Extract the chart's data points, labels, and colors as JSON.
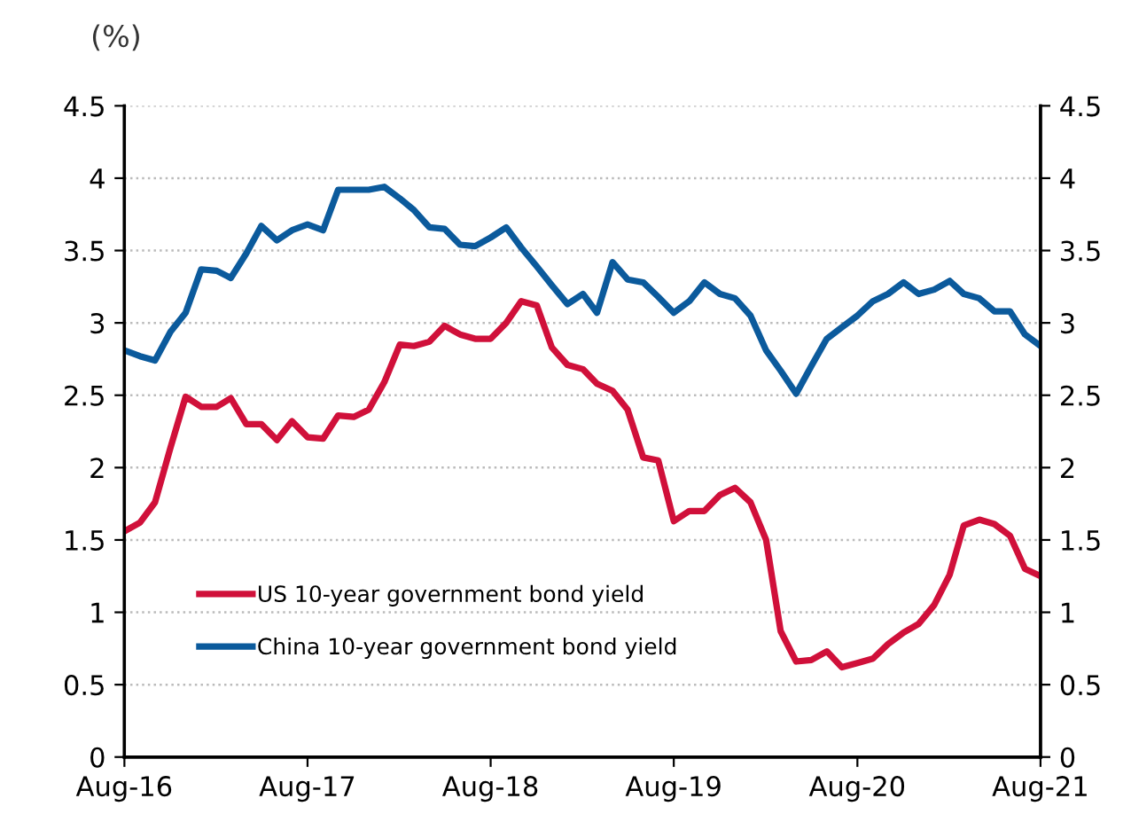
{
  "chart_data": {
    "type": "line",
    "ylabel": "(%)",
    "x": [
      "2016-08",
      "2016-09",
      "2016-10",
      "2016-11",
      "2016-12",
      "2017-01",
      "2017-02",
      "2017-03",
      "2017-04",
      "2017-05",
      "2017-06",
      "2017-07",
      "2017-08",
      "2017-09",
      "2017-10",
      "2017-11",
      "2017-12",
      "2018-01",
      "2018-02",
      "2018-03",
      "2018-04",
      "2018-05",
      "2018-06",
      "2018-07",
      "2018-08",
      "2018-09",
      "2018-10",
      "2018-11",
      "2018-12",
      "2019-01",
      "2019-02",
      "2019-03",
      "2019-04",
      "2019-05",
      "2019-06",
      "2019-07",
      "2019-08",
      "2019-09",
      "2019-10",
      "2019-11",
      "2019-12",
      "2020-01",
      "2020-02",
      "2020-03",
      "2020-04",
      "2020-05",
      "2020-06",
      "2020-07",
      "2020-08",
      "2020-09",
      "2020-10",
      "2020-11",
      "2020-12",
      "2021-01",
      "2021-02",
      "2021-03",
      "2021-04",
      "2021-05",
      "2021-06",
      "2021-07",
      "2021-08"
    ],
    "series": [
      {
        "name": "US 10-year government bond yield",
        "color": "#d0103a",
        "values": [
          1.56,
          1.62,
          1.76,
          2.14,
          2.49,
          2.42,
          2.42,
          2.48,
          2.3,
          2.3,
          2.19,
          2.32,
          2.21,
          2.2,
          2.36,
          2.35,
          2.4,
          2.59,
          2.85,
          2.84,
          2.87,
          2.98,
          2.92,
          2.89,
          2.89,
          3.0,
          3.15,
          3.12,
          2.83,
          2.71,
          2.68,
          2.58,
          2.53,
          2.4,
          2.07,
          2.05,
          1.63,
          1.7,
          1.7,
          1.81,
          1.86,
          1.76,
          1.5,
          0.87,
          0.66,
          0.67,
          0.73,
          0.62,
          0.65,
          0.68,
          0.78,
          0.86,
          0.92,
          1.05,
          1.26,
          1.6,
          1.64,
          1.61,
          1.53,
          1.3,
          1.25
        ]
      },
      {
        "name": "China 10-year government bond yield",
        "color": "#0b5a9c",
        "values": [
          2.81,
          2.77,
          2.74,
          2.94,
          3.07,
          3.37,
          3.36,
          3.31,
          3.48,
          3.67,
          3.57,
          3.64,
          3.68,
          3.64,
          3.92,
          3.92,
          3.92,
          3.94,
          3.86,
          3.78,
          3.66,
          3.65,
          3.54,
          3.53,
          3.59,
          3.66,
          3.52,
          3.39,
          3.26,
          3.13,
          3.2,
          3.07,
          3.42,
          3.3,
          3.28,
          3.18,
          3.07,
          3.15,
          3.28,
          3.2,
          3.17,
          3.05,
          2.81,
          2.67,
          2.51,
          2.7,
          2.89,
          2.97,
          3.05,
          3.15,
          3.2,
          3.28,
          3.2,
          3.23,
          3.29,
          3.2,
          3.17,
          3.08,
          3.08,
          2.92,
          2.84
        ]
      }
    ],
    "xlim": [
      "2016-08",
      "2021-08"
    ],
    "xticks": [
      {
        "value": "2016-08",
        "label": "Aug-16"
      },
      {
        "value": "2017-08",
        "label": "Aug-17"
      },
      {
        "value": "2018-08",
        "label": "Aug-18"
      },
      {
        "value": "2019-08",
        "label": "Aug-19"
      },
      {
        "value": "2020-08",
        "label": "Aug-20"
      },
      {
        "value": "2021-08",
        "label": "Aug-21"
      }
    ],
    "ylim": [
      0,
      4.5
    ],
    "yticks": [
      0,
      0.5,
      1,
      1.5,
      2,
      2.5,
      3,
      3.5,
      4,
      4.5
    ],
    "y2lim": [
      0,
      4.5
    ],
    "y2ticks": [
      0,
      0.5,
      1,
      1.5,
      2,
      2.5,
      3,
      3.5,
      4,
      4.5
    ],
    "grid": "y",
    "legend": "bottom left",
    "line_style": "solid",
    "marker": "none"
  }
}
